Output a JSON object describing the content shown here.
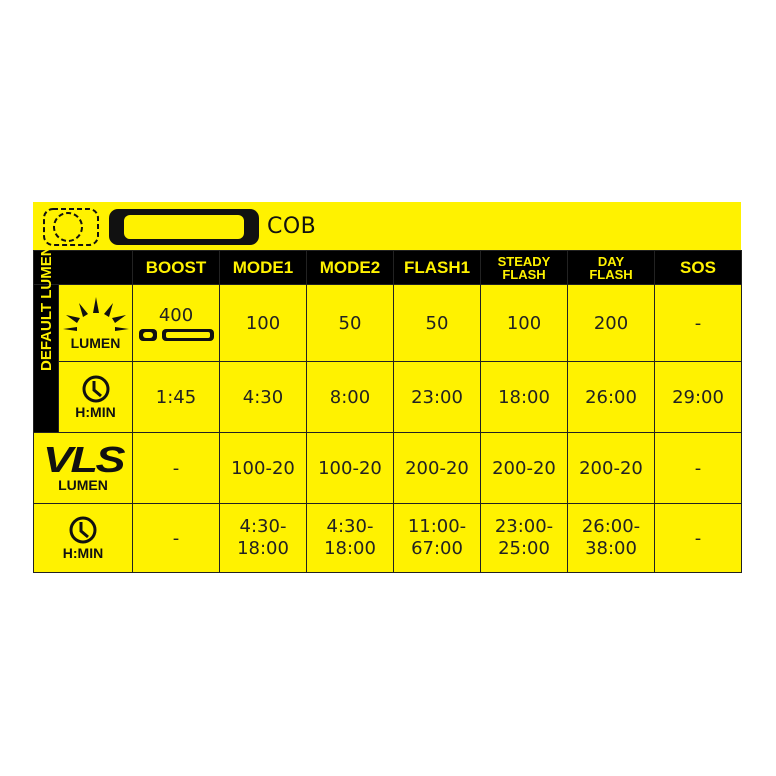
{
  "header": {
    "light_type": "COB"
  },
  "columns": [
    "BOOST",
    "MODE1",
    "MODE2",
    "FLASH1",
    "STEADY FLASH",
    "DAY FLASH",
    "SOS"
  ],
  "columns_display": [
    [
      "BOOST"
    ],
    [
      "MODE1"
    ],
    [
      "MODE2"
    ],
    [
      "FLASH1"
    ],
    [
      "STEADY",
      "FLASH"
    ],
    [
      "DAY",
      "FLASH"
    ],
    [
      "SOS"
    ]
  ],
  "section_label": "DEFAULT LUMEN",
  "rows": [
    {
      "label": "LUMEN",
      "icon": "sun-icon",
      "values": [
        "400",
        "100",
        "50",
        "50",
        "100",
        "200",
        "-"
      ]
    },
    {
      "label": "H:MIN",
      "icon": "clock-icon",
      "values": [
        "1:45",
        "4:30",
        "8:00",
        "23:00",
        "18:00",
        "26:00",
        "29:00"
      ]
    },
    {
      "label": "LUMEN",
      "icon": "vls-logo",
      "logo_text": "VLS",
      "values": [
        "-",
        "100-20",
        "100-20",
        "200-20",
        "200-20",
        "200-20",
        "-"
      ]
    },
    {
      "label": "H:MIN",
      "icon": "clock-icon",
      "values": [
        "-",
        [
          "4:30-",
          "18:00"
        ],
        [
          "4:30-",
          "18:00"
        ],
        [
          "11:00-",
          "67:00"
        ],
        [
          "23:00-",
          "25:00"
        ],
        [
          "26:00-",
          "38:00"
        ],
        "-"
      ]
    }
  ],
  "colors": {
    "background": "#fff200",
    "header": "#000000"
  }
}
